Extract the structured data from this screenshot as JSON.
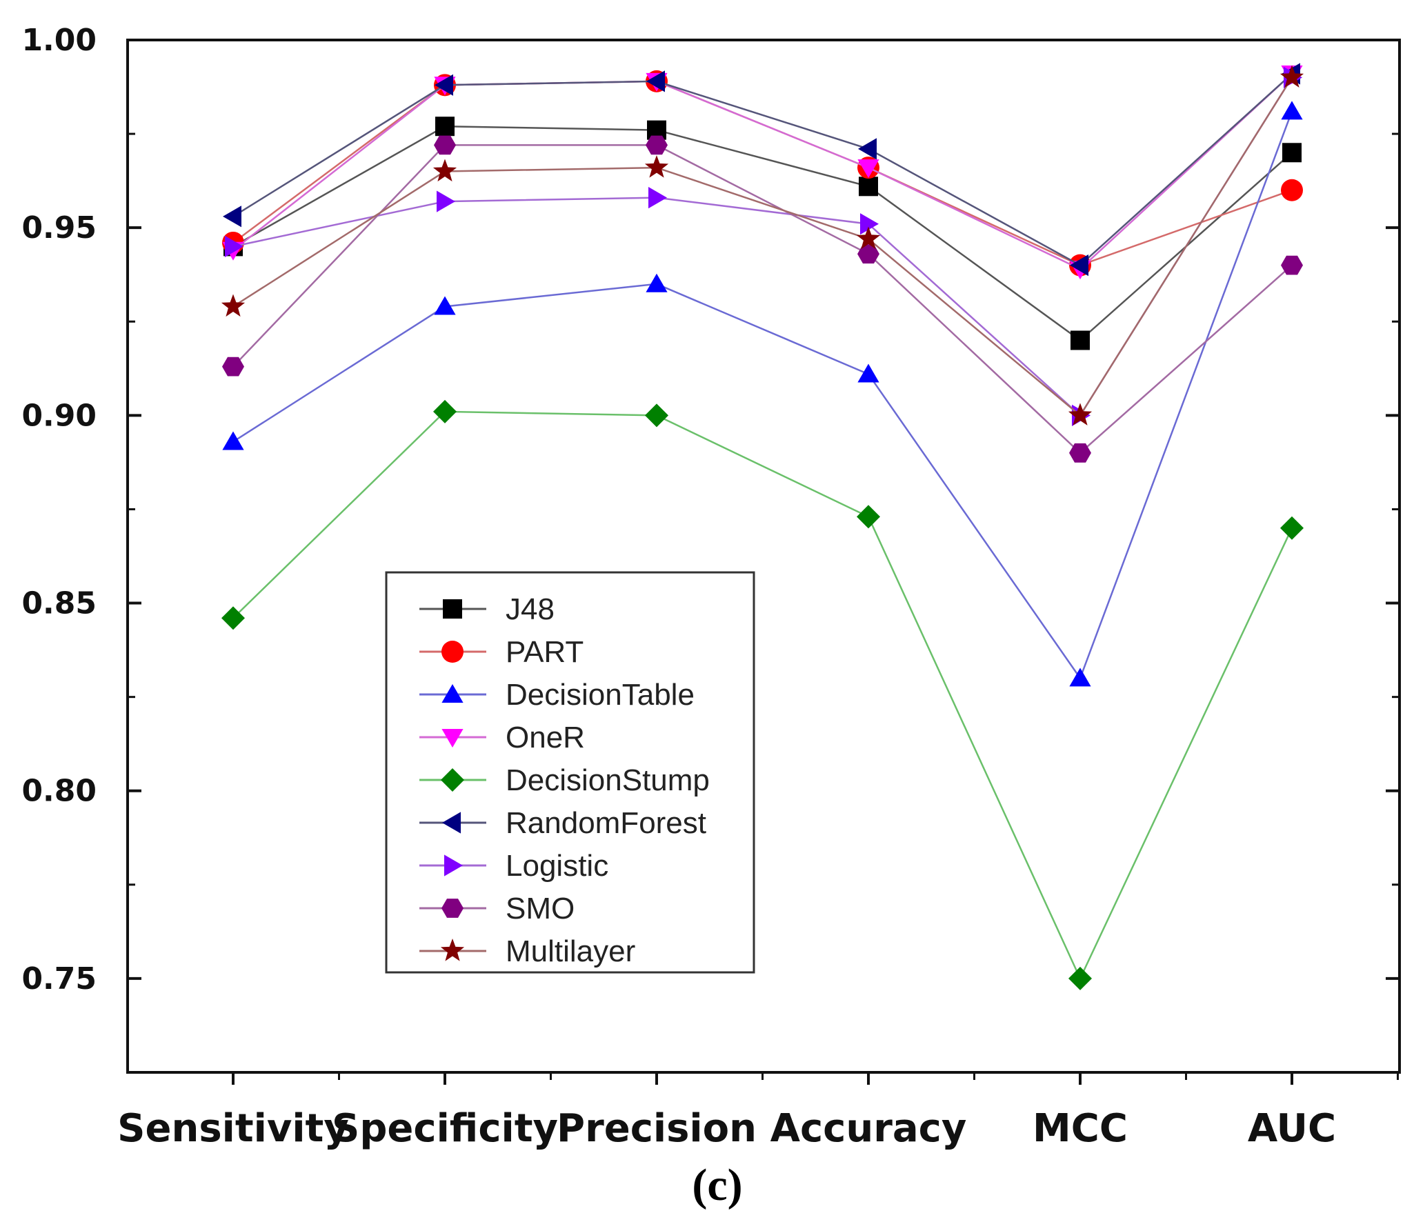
{
  "chart_data": {
    "type": "line",
    "title": "",
    "xlabel": "",
    "ylabel": "",
    "caption": "(c)",
    "categories": [
      "Sensitivity",
      "Specificity",
      "Precision",
      "Accuracy",
      "MCC",
      "AUC"
    ],
    "ylim": [
      0.725,
      1.0
    ],
    "yticks": [
      0.75,
      0.8,
      0.85,
      0.9,
      0.95,
      1.0
    ],
    "ytick_labels": [
      "0.75",
      "0.80",
      "0.85",
      "0.90",
      "0.95",
      "1.00"
    ],
    "legend_position": "center-left",
    "series": [
      {
        "name": "J48",
        "marker": "square",
        "color": "#000000",
        "line_color": "#555555",
        "values": [
          0.945,
          0.977,
          0.976,
          0.961,
          0.92,
          0.97
        ]
      },
      {
        "name": "PART",
        "marker": "circle",
        "color": "#ff0000",
        "line_color": "#d46a6a",
        "values": [
          0.946,
          0.988,
          0.989,
          0.966,
          0.94,
          0.96
        ]
      },
      {
        "name": "DecisionTable",
        "marker": "triangle-up",
        "color": "#0000ff",
        "line_color": "#6a6ad4",
        "values": [
          0.893,
          0.929,
          0.935,
          0.911,
          0.83,
          0.981
        ]
      },
      {
        "name": "OneR",
        "marker": "triangle-down",
        "color": "#ff00ff",
        "line_color": "#d46ad4",
        "values": [
          0.944,
          0.988,
          0.989,
          0.966,
          0.939,
          0.991
        ]
      },
      {
        "name": "DecisionStump",
        "marker": "diamond",
        "color": "#008000",
        "line_color": "#6ac06a",
        "values": [
          0.846,
          0.901,
          0.9,
          0.873,
          0.75,
          0.87
        ]
      },
      {
        "name": "RandomForest",
        "marker": "triangle-left",
        "color": "#000080",
        "line_color": "#55557a",
        "values": [
          0.953,
          0.988,
          0.989,
          0.971,
          0.94,
          0.991
        ]
      },
      {
        "name": "Logistic",
        "marker": "triangle-right",
        "color": "#8000ff",
        "line_color": "#a36ad4",
        "values": [
          0.945,
          0.957,
          0.958,
          0.951,
          0.9,
          0.99
        ]
      },
      {
        "name": "SMO",
        "marker": "hexagon",
        "color": "#800080",
        "line_color": "#a36aa3",
        "values": [
          0.913,
          0.972,
          0.972,
          0.943,
          0.89,
          0.94
        ]
      },
      {
        "name": "Multilayer",
        "marker": "star",
        "color": "#800000",
        "line_color": "#a36a6a",
        "values": [
          0.929,
          0.965,
          0.966,
          0.947,
          0.9,
          0.99
        ]
      }
    ]
  }
}
